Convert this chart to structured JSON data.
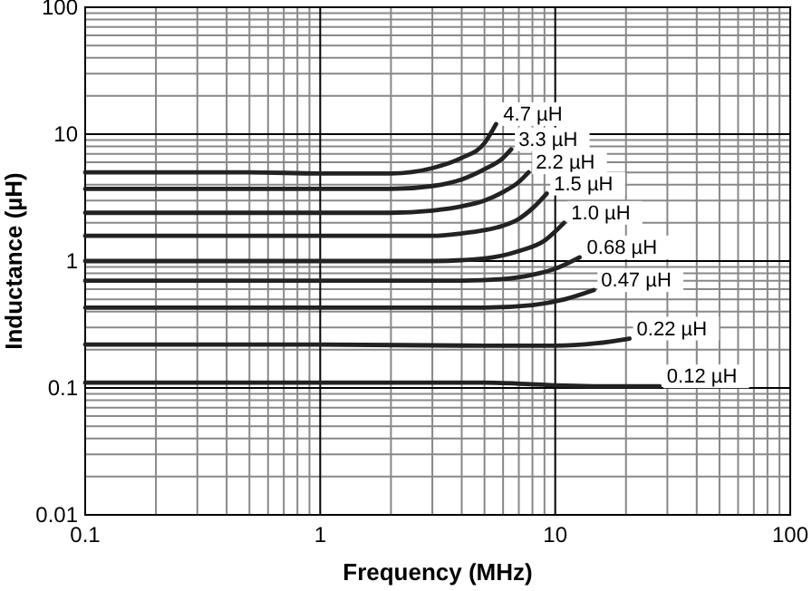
{
  "chart_data": {
    "type": "line",
    "xlabel": "Frequency (MHz)",
    "ylabel": "Inductance (µH)",
    "log": "xy",
    "grid": true,
    "marker": "none",
    "line_style": "solid",
    "xlim": [
      0.1,
      100
    ],
    "xticks": [
      0.1,
      1,
      10,
      100
    ],
    "ylim": [
      0.01,
      100
    ],
    "yticks": [
      0.01,
      0.1,
      1,
      10,
      100
    ],
    "series": [
      {
        "name": "4.7 µH",
        "color": "#222222",
        "x": [
          0.1,
          0.5,
          1,
          2,
          3,
          4,
          5,
          5.6
        ],
        "values": [
          5.0,
          5.0,
          4.9,
          4.9,
          5.4,
          6.5,
          8.5,
          12
        ]
      },
      {
        "name": "3.3 µH",
        "color": "#222222",
        "x": [
          0.1,
          1,
          2,
          3,
          4,
          5,
          6,
          6.5
        ],
        "values": [
          3.7,
          3.7,
          3.7,
          3.9,
          4.4,
          5.3,
          6.5,
          7.6
        ]
      },
      {
        "name": "2.2 µH",
        "color": "#222222",
        "x": [
          0.1,
          1,
          2,
          3,
          4,
          5,
          6,
          7,
          7.7
        ],
        "values": [
          2.4,
          2.4,
          2.4,
          2.5,
          2.7,
          3.0,
          3.5,
          4.2,
          5.0
        ]
      },
      {
        "name": "1.5 µH",
        "color": "#222222",
        "x": [
          0.1,
          1,
          3,
          4,
          5,
          6,
          7,
          8,
          9.2
        ],
        "values": [
          1.58,
          1.58,
          1.58,
          1.65,
          1.75,
          1.9,
          2.15,
          2.6,
          3.4
        ]
      },
      {
        "name": "1.0 µH",
        "color": "#222222",
        "x": [
          0.1,
          1,
          3,
          5,
          7,
          9,
          10.9
        ],
        "values": [
          1.0,
          1.0,
          1.0,
          1.05,
          1.2,
          1.45,
          2.0
        ]
      },
      {
        "name": "0.68 µH",
        "color": "#222222",
        "x": [
          0.1,
          1,
          4,
          6,
          8,
          10,
          12.7
        ],
        "values": [
          0.7,
          0.7,
          0.7,
          0.72,
          0.78,
          0.87,
          1.07
        ]
      },
      {
        "name": "0.47 µH",
        "color": "#222222",
        "x": [
          0.1,
          1,
          5,
          8,
          11,
          14.6
        ],
        "values": [
          0.43,
          0.43,
          0.43,
          0.45,
          0.5,
          0.59
        ]
      },
      {
        "name": "0.22 µH",
        "color": "#222222",
        "x": [
          0.1,
          1,
          5,
          10,
          15,
          20.7
        ],
        "values": [
          0.22,
          0.22,
          0.215,
          0.215,
          0.225,
          0.245
        ]
      },
      {
        "name": "0.12 µH",
        "color": "#222222",
        "x": [
          0.1,
          1,
          5,
          10,
          20,
          27.8
        ],
        "values": [
          0.11,
          0.11,
          0.11,
          0.105,
          0.103,
          0.103
        ]
      }
    ]
  }
}
